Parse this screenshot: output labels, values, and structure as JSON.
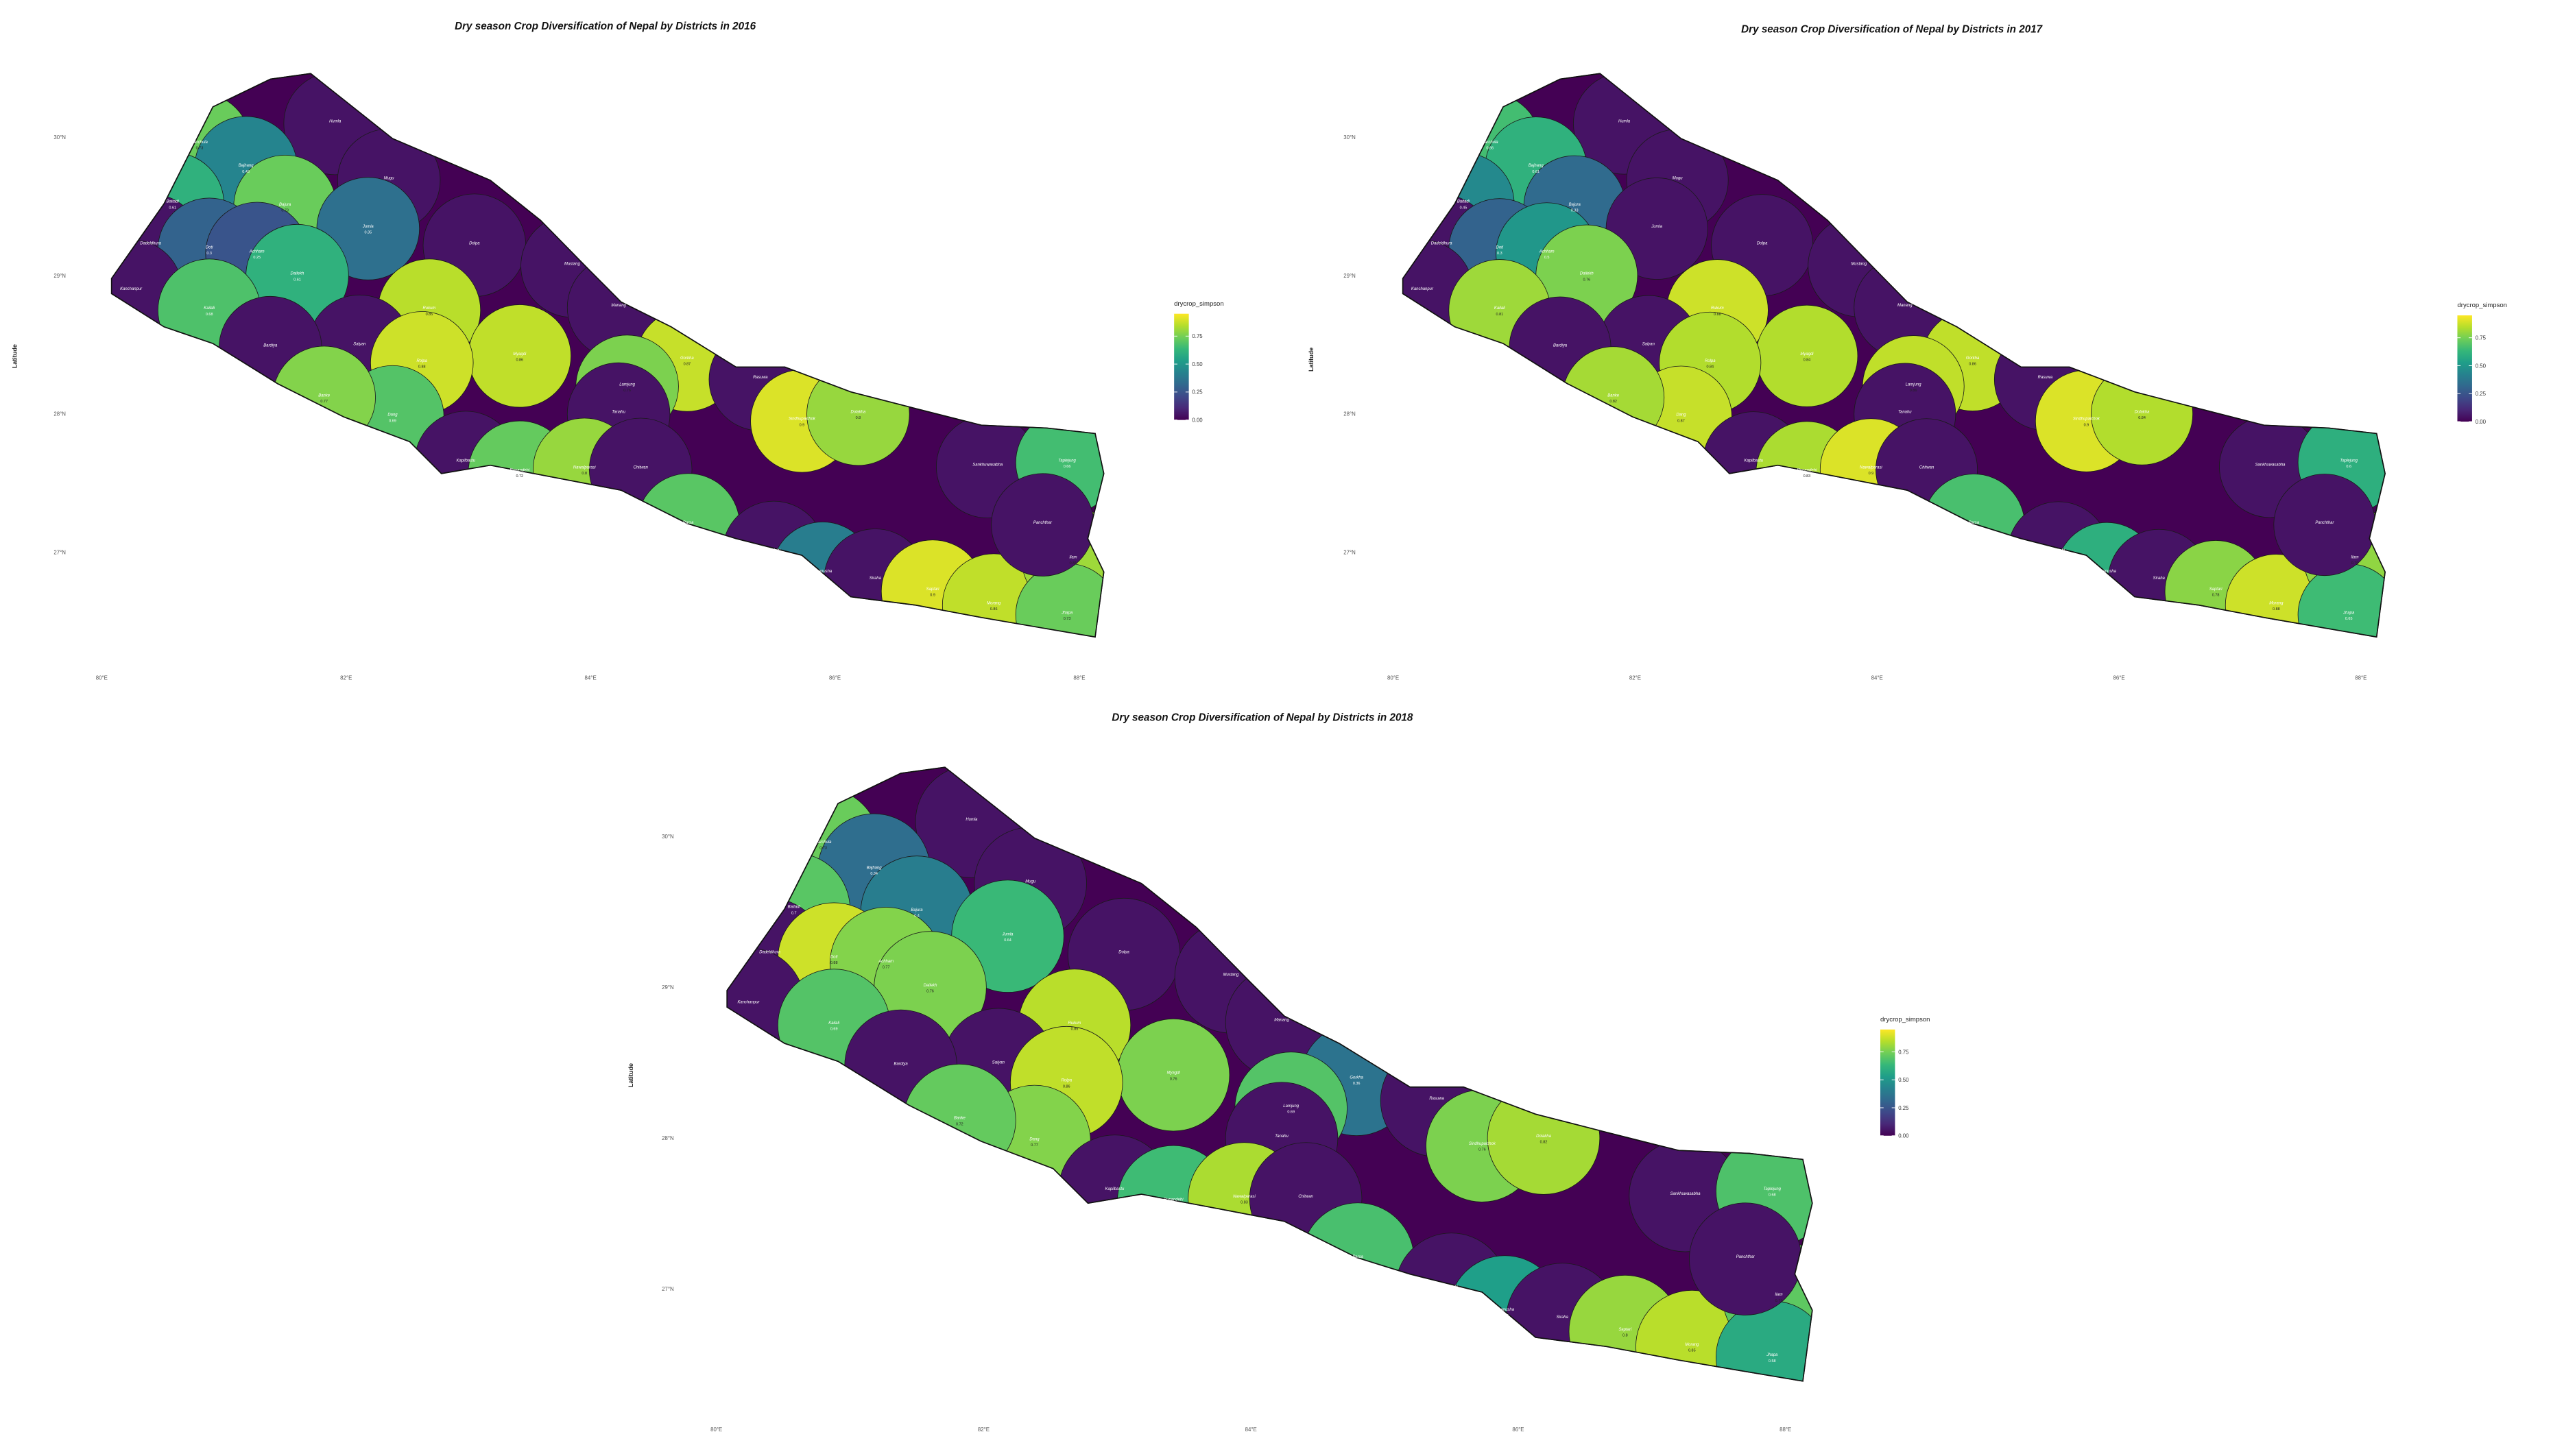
{
  "districts": [
    "Humla",
    "Darchula",
    "Bajhang",
    "Mugu",
    "Baitadi",
    "Bajura",
    "Jumla",
    "Dolpa",
    "Dadeldhura",
    "Doti",
    "Achham",
    "Dailekh",
    "Mustang",
    "Kanchanpur",
    "Manang",
    "Rukum",
    "Kailali",
    "Salyan",
    "Bardiya",
    "Myagdi",
    "Gorkha",
    "Rolpa",
    "Rasuwa",
    "Lamjung",
    "Dang",
    "Banke",
    "Tanahu",
    "Sindhupalchok",
    "Kapilbastu",
    "Rupandehi",
    "Nawalparasi",
    "Chitwan",
    "Dolakha",
    "Sankhuwasabha",
    "Taplejung",
    "Parsa",
    "Sarlahi",
    "Dhanusha",
    "Siraha",
    "Saptari",
    "Morang",
    "Ilam",
    "Jhapa",
    "Panchthar"
  ],
  "lon": [
    81.91,
    80.8,
    81.18,
    82.35,
    80.58,
    81.5,
    82.18,
    83.05,
    80.4,
    80.88,
    81.27,
    81.6,
    83.85,
    80.24,
    84.23,
    82.68,
    80.88,
    82.11,
    81.38,
    83.42,
    84.79,
    82.62,
    85.39,
    84.3,
    82.38,
    81.82,
    84.23,
    85.73,
    82.98,
    83.42,
    83.95,
    84.41,
    86.19,
    87.25,
    87.9,
    84.8,
    85.5,
    85.9,
    86.33,
    86.8,
    87.3,
    87.95,
    87.9,
    87.7
  ],
  "lat": [
    30.1,
    29.95,
    29.78,
    29.69,
    29.52,
    29.5,
    29.34,
    29.22,
    29.22,
    29.19,
    29.16,
    29.0,
    29.07,
    28.89,
    28.77,
    28.75,
    28.75,
    28.49,
    28.48,
    28.42,
    28.39,
    28.37,
    28.25,
    28.2,
    27.98,
    28.12,
    28.0,
    27.95,
    27.65,
    27.58,
    27.6,
    27.6,
    28.0,
    27.62,
    27.65,
    27.2,
    27.0,
    26.85,
    26.8,
    26.72,
    26.62,
    26.95,
    26.55,
    27.2
  ],
  "x_ticks": [
    {
      "value": 80,
      "label": "80°E"
    },
    {
      "value": 82,
      "label": "82°E"
    },
    {
      "value": 84,
      "label": "84°E"
    },
    {
      "value": 86,
      "label": "86°E"
    },
    {
      "value": 88,
      "label": "88°E"
    }
  ],
  "y_ticks": [
    {
      "value": 27,
      "label": "27°N"
    },
    {
      "value": 28,
      "label": "28°N"
    },
    {
      "value": 29,
      "label": "29°N"
    },
    {
      "value": 30,
      "label": "30°N"
    }
  ],
  "y_label": "Latitude",
  "legend_title": "drycrop_simpson",
  "legend_ticks": [
    {
      "value": 0,
      "label": "0.00"
    },
    {
      "value": 0.25,
      "label": "0.25"
    },
    {
      "value": 0.5,
      "label": "0.50"
    },
    {
      "value": 0.75,
      "label": "0.75"
    }
  ],
  "color_lim": [
    0,
    0.95
  ],
  "maps": [
    {
      "title": "Dry season Crop Diversification of Nepal by Districts in 2016",
      "values": [
        0.05,
        0.73,
        0.43,
        0.05,
        0.61,
        0.73,
        0.35,
        0.05,
        0.05,
        0.3,
        0.25,
        0.61,
        0.05,
        0.05,
        0.05,
        0.85,
        0.68,
        0.05,
        0.05,
        0.86,
        0.87,
        0.88,
        0.05,
        0.76,
        0.69,
        0.77,
        0.05,
        0.9,
        0.05,
        0.72,
        0.8,
        0.05,
        0.8,
        0.05,
        0.66,
        0.7,
        0.05,
        0.4,
        0.05,
        0.9,
        0.86,
        0.81,
        0.73,
        0.05
      ]
    },
    {
      "title": "Dry season Crop Diversification of Nepal by Districts in 2017",
      "values": [
        0.05,
        0.66,
        0.61,
        0.05,
        0.45,
        0.33,
        0.05,
        0.05,
        0.05,
        0.3,
        0.5,
        0.76,
        0.05,
        0.05,
        0.05,
        0.88,
        0.81,
        0.05,
        0.05,
        0.84,
        0.86,
        0.84,
        0.05,
        0.86,
        0.87,
        0.82,
        0.05,
        0.9,
        0.05,
        0.83,
        0.9,
        0.05,
        0.84,
        0.05,
        0.6,
        0.67,
        0.05,
        0.6,
        0.05,
        0.78,
        0.88,
        0.79,
        0.65,
        0.05
      ]
    },
    {
      "title": "Dry season Crop Diversification of Nepal by Districts in 2018",
      "values": [
        0.05,
        0.73,
        0.34,
        0.05,
        0.7,
        0.4,
        0.64,
        0.05,
        0.05,
        0.88,
        0.77,
        0.76,
        0.05,
        0.05,
        0.05,
        0.85,
        0.69,
        0.05,
        0.05,
        0.76,
        0.36,
        0.86,
        0.05,
        0.69,
        0.77,
        0.72,
        0.05,
        0.76,
        0.05,
        0.65,
        0.83,
        0.05,
        0.82,
        0.05,
        0.68,
        0.67,
        0.05,
        0.53,
        0.05,
        0.8,
        0.85,
        0.71,
        0.58,
        0.05
      ]
    }
  ]
}
